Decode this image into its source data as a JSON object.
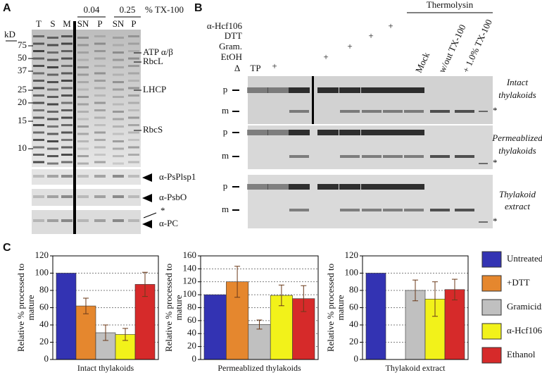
{
  "panel_a": {
    "letter": "A",
    "unit": "kD",
    "markers": [
      "75",
      "50",
      "37",
      "25",
      "20",
      "15",
      "10"
    ],
    "lanes": [
      "T",
      "S",
      "M",
      "SN",
      "P",
      "SN",
      "P"
    ],
    "concentrations": [
      "0.04",
      "0.25"
    ],
    "detergent": "% TX-100",
    "bands": [
      "ATP  α/β",
      "RbcL",
      "LHCP",
      "RbcS"
    ],
    "blots": [
      "α-PsPlsp1",
      "α-PsbO",
      "α-PC"
    ],
    "star": "*"
  },
  "panel_b": {
    "letter": "B",
    "protease": "Thermolysin",
    "rows": [
      "α-Hcf106",
      "DTT",
      "Gram.",
      "EtOH"
    ],
    "delta": "Δ",
    "tp": "TP",
    "plus_marks": [
      "+",
      "+",
      "+",
      "+",
      "+"
    ],
    "lanes": [
      "Mock",
      "w/out TX-100",
      "+ 1.0% TX-100"
    ],
    "gels": [
      {
        "p": "p",
        "m": "m",
        "label_lines": [
          "Intact",
          "thylakoids"
        ],
        "star": "*"
      },
      {
        "p": "p",
        "m": "m",
        "label_lines": [
          "Permeablized",
          "thylakoids"
        ],
        "star": "*"
      },
      {
        "p": "p",
        "m": "m",
        "label_lines": [
          "Thylakoid",
          "extract"
        ],
        "star": "*"
      }
    ]
  },
  "panel_c": {
    "letter": "C"
  },
  "legend": [
    {
      "name": "Untreated",
      "color": "#3333b3"
    },
    {
      "name": "+DTT",
      "color": "#e5872e"
    },
    {
      "name": "Gramicidin",
      "color": "#c0c0c0"
    },
    {
      "name": "α-Hcf106",
      "color": "#f2f21a"
    },
    {
      "name": "Ethanol",
      "color": "#d62a2a"
    }
  ],
  "chart_data": [
    {
      "type": "bar",
      "xlabel": "Intact thylakoids",
      "ylabel_lines": [
        "Relative % processed to",
        "mature"
      ],
      "values": [
        100,
        62,
        31,
        29,
        87
      ],
      "errors": [
        null,
        9,
        9,
        7,
        14
      ],
      "ylim": [
        0,
        120
      ],
      "yticks": [
        0,
        20,
        40,
        60,
        80,
        100,
        120
      ],
      "grid": true
    },
    {
      "type": "bar",
      "xlabel": "Permeablized thylakoids",
      "ylabel_lines": [
        "Relative % processed to",
        "mature"
      ],
      "values": [
        100,
        120,
        54,
        99,
        94
      ],
      "errors": [
        null,
        24,
        7,
        16,
        20
      ],
      "ylim": [
        0,
        160
      ],
      "yticks": [
        0,
        20,
        40,
        60,
        80,
        100,
        120,
        140,
        160
      ],
      "grid": true
    },
    {
      "type": "bar",
      "xlabel": "Thylakoid extract",
      "ylabel_lines": [
        "Relative % processed to",
        "mature"
      ],
      "values": [
        100,
        null,
        80,
        70,
        81
      ],
      "errors": [
        null,
        null,
        12,
        20,
        12
      ],
      "ylim": [
        0,
        120
      ],
      "yticks": [
        0,
        20,
        40,
        60,
        80,
        100,
        120
      ],
      "grid": true
    }
  ]
}
